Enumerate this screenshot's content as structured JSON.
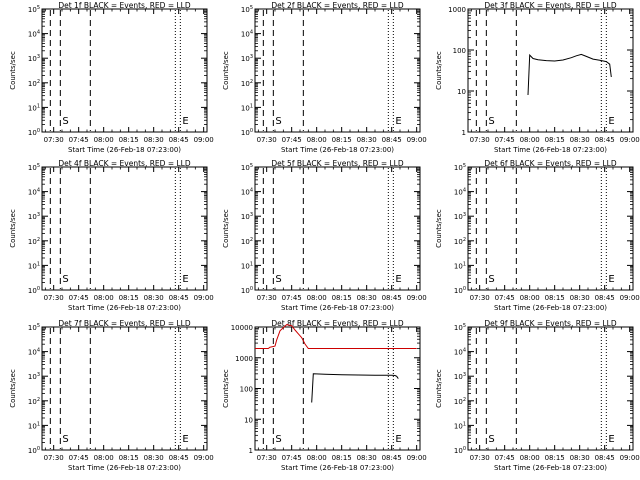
{
  "figure": {
    "xlabel": "Start Time (26-Feb-18 07:23:00)",
    "ylabel": "Counts/sec",
    "colors": {
      "events": "#000000",
      "lld": "#cc0000"
    }
  },
  "chart_data": [
    {
      "type": "line",
      "title": "Det 1f BLACK = Events, RED = LLD",
      "xlabel": "Start Time (26-Feb-18 07:23:00)",
      "ylabel": "Counts/sec",
      "y_scale": "log",
      "ylim": [
        1,
        100000
      ],
      "y_tick_labels": [
        "10^0",
        "10^1",
        "10^2",
        "10^3",
        "10^4",
        "10^5"
      ],
      "x_tick_labels": [
        "07:30",
        "07:45",
        "08:00",
        "08:15",
        "08:30",
        "08:45",
        "09:00"
      ],
      "xlim": [
        "07:23",
        "09:02"
      ],
      "markers": [
        {
          "label": "S",
          "time": "07:34"
        },
        {
          "label": "E",
          "time": "08:46"
        }
      ],
      "series": []
    },
    {
      "type": "line",
      "title": "Det 2f BLACK = Events, RED = LLD",
      "xlabel": "Start Time (26-Feb-18 07:23:00)",
      "ylabel": "Counts/sec",
      "y_scale": "log",
      "ylim": [
        1,
        100000
      ],
      "y_tick_labels": [
        "10^0",
        "10^1",
        "10^2",
        "10^3",
        "10^4",
        "10^5"
      ],
      "x_tick_labels": [
        "07:30",
        "07:45",
        "08:00",
        "08:15",
        "08:30",
        "08:45",
        "09:00"
      ],
      "xlim": [
        "07:23",
        "09:02"
      ],
      "markers": [
        {
          "label": "S",
          "time": "07:34"
        },
        {
          "label": "E",
          "time": "08:46"
        }
      ],
      "series": []
    },
    {
      "type": "line",
      "title": "Det 3f BLACK = Events, RED = LLD",
      "xlabel": "Start Time (26-Feb-18 07:23:00)",
      "ylabel": "Counts/sec",
      "y_scale": "log",
      "ylim": [
        1,
        1000
      ],
      "y_tick_labels": [
        "1",
        "10",
        "100",
        "1000"
      ],
      "x_tick_labels": [
        "07:30",
        "07:45",
        "08:00",
        "08:15",
        "08:30",
        "08:45",
        "09:00"
      ],
      "xlim": [
        "07:23",
        "09:02"
      ],
      "markers": [
        {
          "label": "S",
          "time": "07:34"
        },
        {
          "label": "E",
          "time": "08:46"
        }
      ],
      "series": [
        {
          "color": "#000000",
          "x": [
            "07:59",
            "08:00",
            "08:02",
            "08:05",
            "08:10",
            "08:15",
            "08:20",
            "08:25",
            "08:28",
            "08:31",
            "08:34",
            "08:38",
            "08:42",
            "08:46",
            "08:48",
            "08:49"
          ],
          "y": [
            8,
            75,
            62,
            58,
            55,
            54,
            57,
            65,
            72,
            78,
            70,
            60,
            56,
            52,
            45,
            22
          ]
        }
      ]
    },
    {
      "type": "line",
      "title": "Det 4f BLACK = Events, RED = LLD",
      "xlabel": "Start Time (26-Feb-18 07:23:00)",
      "ylabel": "Counts/sec",
      "y_scale": "log",
      "ylim": [
        1,
        100000
      ],
      "y_tick_labels": [
        "10^0",
        "10^1",
        "10^2",
        "10^3",
        "10^4",
        "10^5"
      ],
      "x_tick_labels": [
        "07:30",
        "07:45",
        "08:00",
        "08:15",
        "08:30",
        "08:45",
        "09:00"
      ],
      "xlim": [
        "07:23",
        "09:02"
      ],
      "markers": [
        {
          "label": "S",
          "time": "07:34"
        },
        {
          "label": "E",
          "time": "08:46"
        }
      ],
      "series": []
    },
    {
      "type": "line",
      "title": "Det 5f BLACK = Events, RED = LLD",
      "xlabel": "Start Time (26-Feb-18 07:23:00)",
      "ylabel": "Counts/sec",
      "y_scale": "log",
      "ylim": [
        1,
        100000
      ],
      "y_tick_labels": [
        "10^0",
        "10^1",
        "10^2",
        "10^3",
        "10^4",
        "10^5"
      ],
      "x_tick_labels": [
        "07:30",
        "07:45",
        "08:00",
        "08:15",
        "08:30",
        "08:45",
        "09:00"
      ],
      "xlim": [
        "07:23",
        "09:02"
      ],
      "markers": [
        {
          "label": "S",
          "time": "07:34"
        },
        {
          "label": "E",
          "time": "08:46"
        }
      ],
      "series": []
    },
    {
      "type": "line",
      "title": "Det 6f BLACK = Events, RED = LLD",
      "xlabel": "Start Time (26-Feb-18 07:23:00)",
      "ylabel": "Counts/sec",
      "y_scale": "log",
      "ylim": [
        1,
        100000
      ],
      "y_tick_labels": [
        "10^0",
        "10^1",
        "10^2",
        "10^3",
        "10^4",
        "10^5"
      ],
      "x_tick_labels": [
        "07:30",
        "07:45",
        "08:00",
        "08:15",
        "08:30",
        "08:45",
        "09:00"
      ],
      "xlim": [
        "07:23",
        "09:02"
      ],
      "markers": [
        {
          "label": "S",
          "time": "07:34"
        },
        {
          "label": "E",
          "time": "08:46"
        }
      ],
      "series": []
    },
    {
      "type": "line",
      "title": "Det 7f BLACK = Events, RED = LLD",
      "xlabel": "Start Time (26-Feb-18 07:23:00)",
      "ylabel": "Counts/sec",
      "y_scale": "log",
      "ylim": [
        1,
        100000
      ],
      "y_tick_labels": [
        "10^0",
        "10^1",
        "10^2",
        "10^3",
        "10^4",
        "10^5"
      ],
      "x_tick_labels": [
        "07:30",
        "07:45",
        "08:00",
        "08:15",
        "08:30",
        "08:45",
        "09:00"
      ],
      "xlim": [
        "07:23",
        "09:02"
      ],
      "markers": [
        {
          "label": "S",
          "time": "07:34"
        },
        {
          "label": "E",
          "time": "08:46"
        }
      ],
      "series": []
    },
    {
      "type": "line",
      "title": "Det 8f BLACK = Events, RED = LLD",
      "xlabel": "Start Time (26-Feb-18 07:23:00)",
      "ylabel": "Counts/sec",
      "y_scale": "log",
      "ylim": [
        1,
        10000
      ],
      "y_tick_labels": [
        "1",
        "10",
        "100",
        "1000",
        "10000"
      ],
      "x_tick_labels": [
        "07:30",
        "07:45",
        "08:00",
        "08:15",
        "08:30",
        "08:45",
        "09:00"
      ],
      "xlim": [
        "07:23",
        "09:02"
      ],
      "markers": [
        {
          "label": "S",
          "time": "07:34"
        },
        {
          "label": "E",
          "time": "08:46"
        }
      ],
      "series": [
        {
          "color": "#000000",
          "x": [
            "07:57",
            "07:58",
            "08:05",
            "08:15",
            "08:25",
            "08:35",
            "08:45",
            "08:47",
            "08:48",
            "08:49"
          ],
          "y": [
            35,
            300,
            290,
            280,
            275,
            270,
            268,
            265,
            250,
            210
          ]
        },
        {
          "color": "#cc0000",
          "x": [
            "07:23",
            "07:28",
            "07:31",
            "07:32",
            "07:35",
            "07:36",
            "07:38",
            "07:42",
            "07:45",
            "07:47",
            "07:49",
            "07:51",
            "07:53",
            "07:55",
            "08:00",
            "08:15",
            "08:30",
            "08:45",
            "09:00"
          ],
          "y": [
            2000,
            2000,
            2000,
            2200,
            2400,
            3800,
            7500,
            12000,
            11000,
            8000,
            6000,
            4500,
            2800,
            2000,
            2000,
            2000,
            2000,
            2000,
            2000
          ]
        }
      ]
    },
    {
      "type": "line",
      "title": "Det 9f BLACK = Events, RED = LLD",
      "xlabel": "Start Time (26-Feb-18 07:23:00)",
      "ylabel": "Counts/sec",
      "y_scale": "log",
      "ylim": [
        1,
        100000
      ],
      "y_tick_labels": [
        "10^0",
        "10^1",
        "10^2",
        "10^3",
        "10^4",
        "10^5"
      ],
      "x_tick_labels": [
        "07:30",
        "07:45",
        "08:00",
        "08:15",
        "08:30",
        "08:45",
        "09:00"
      ],
      "xlim": [
        "07:23",
        "09:02"
      ],
      "markers": [
        {
          "label": "S",
          "time": "07:34"
        },
        {
          "label": "E",
          "time": "08:46"
        }
      ],
      "series": []
    }
  ]
}
